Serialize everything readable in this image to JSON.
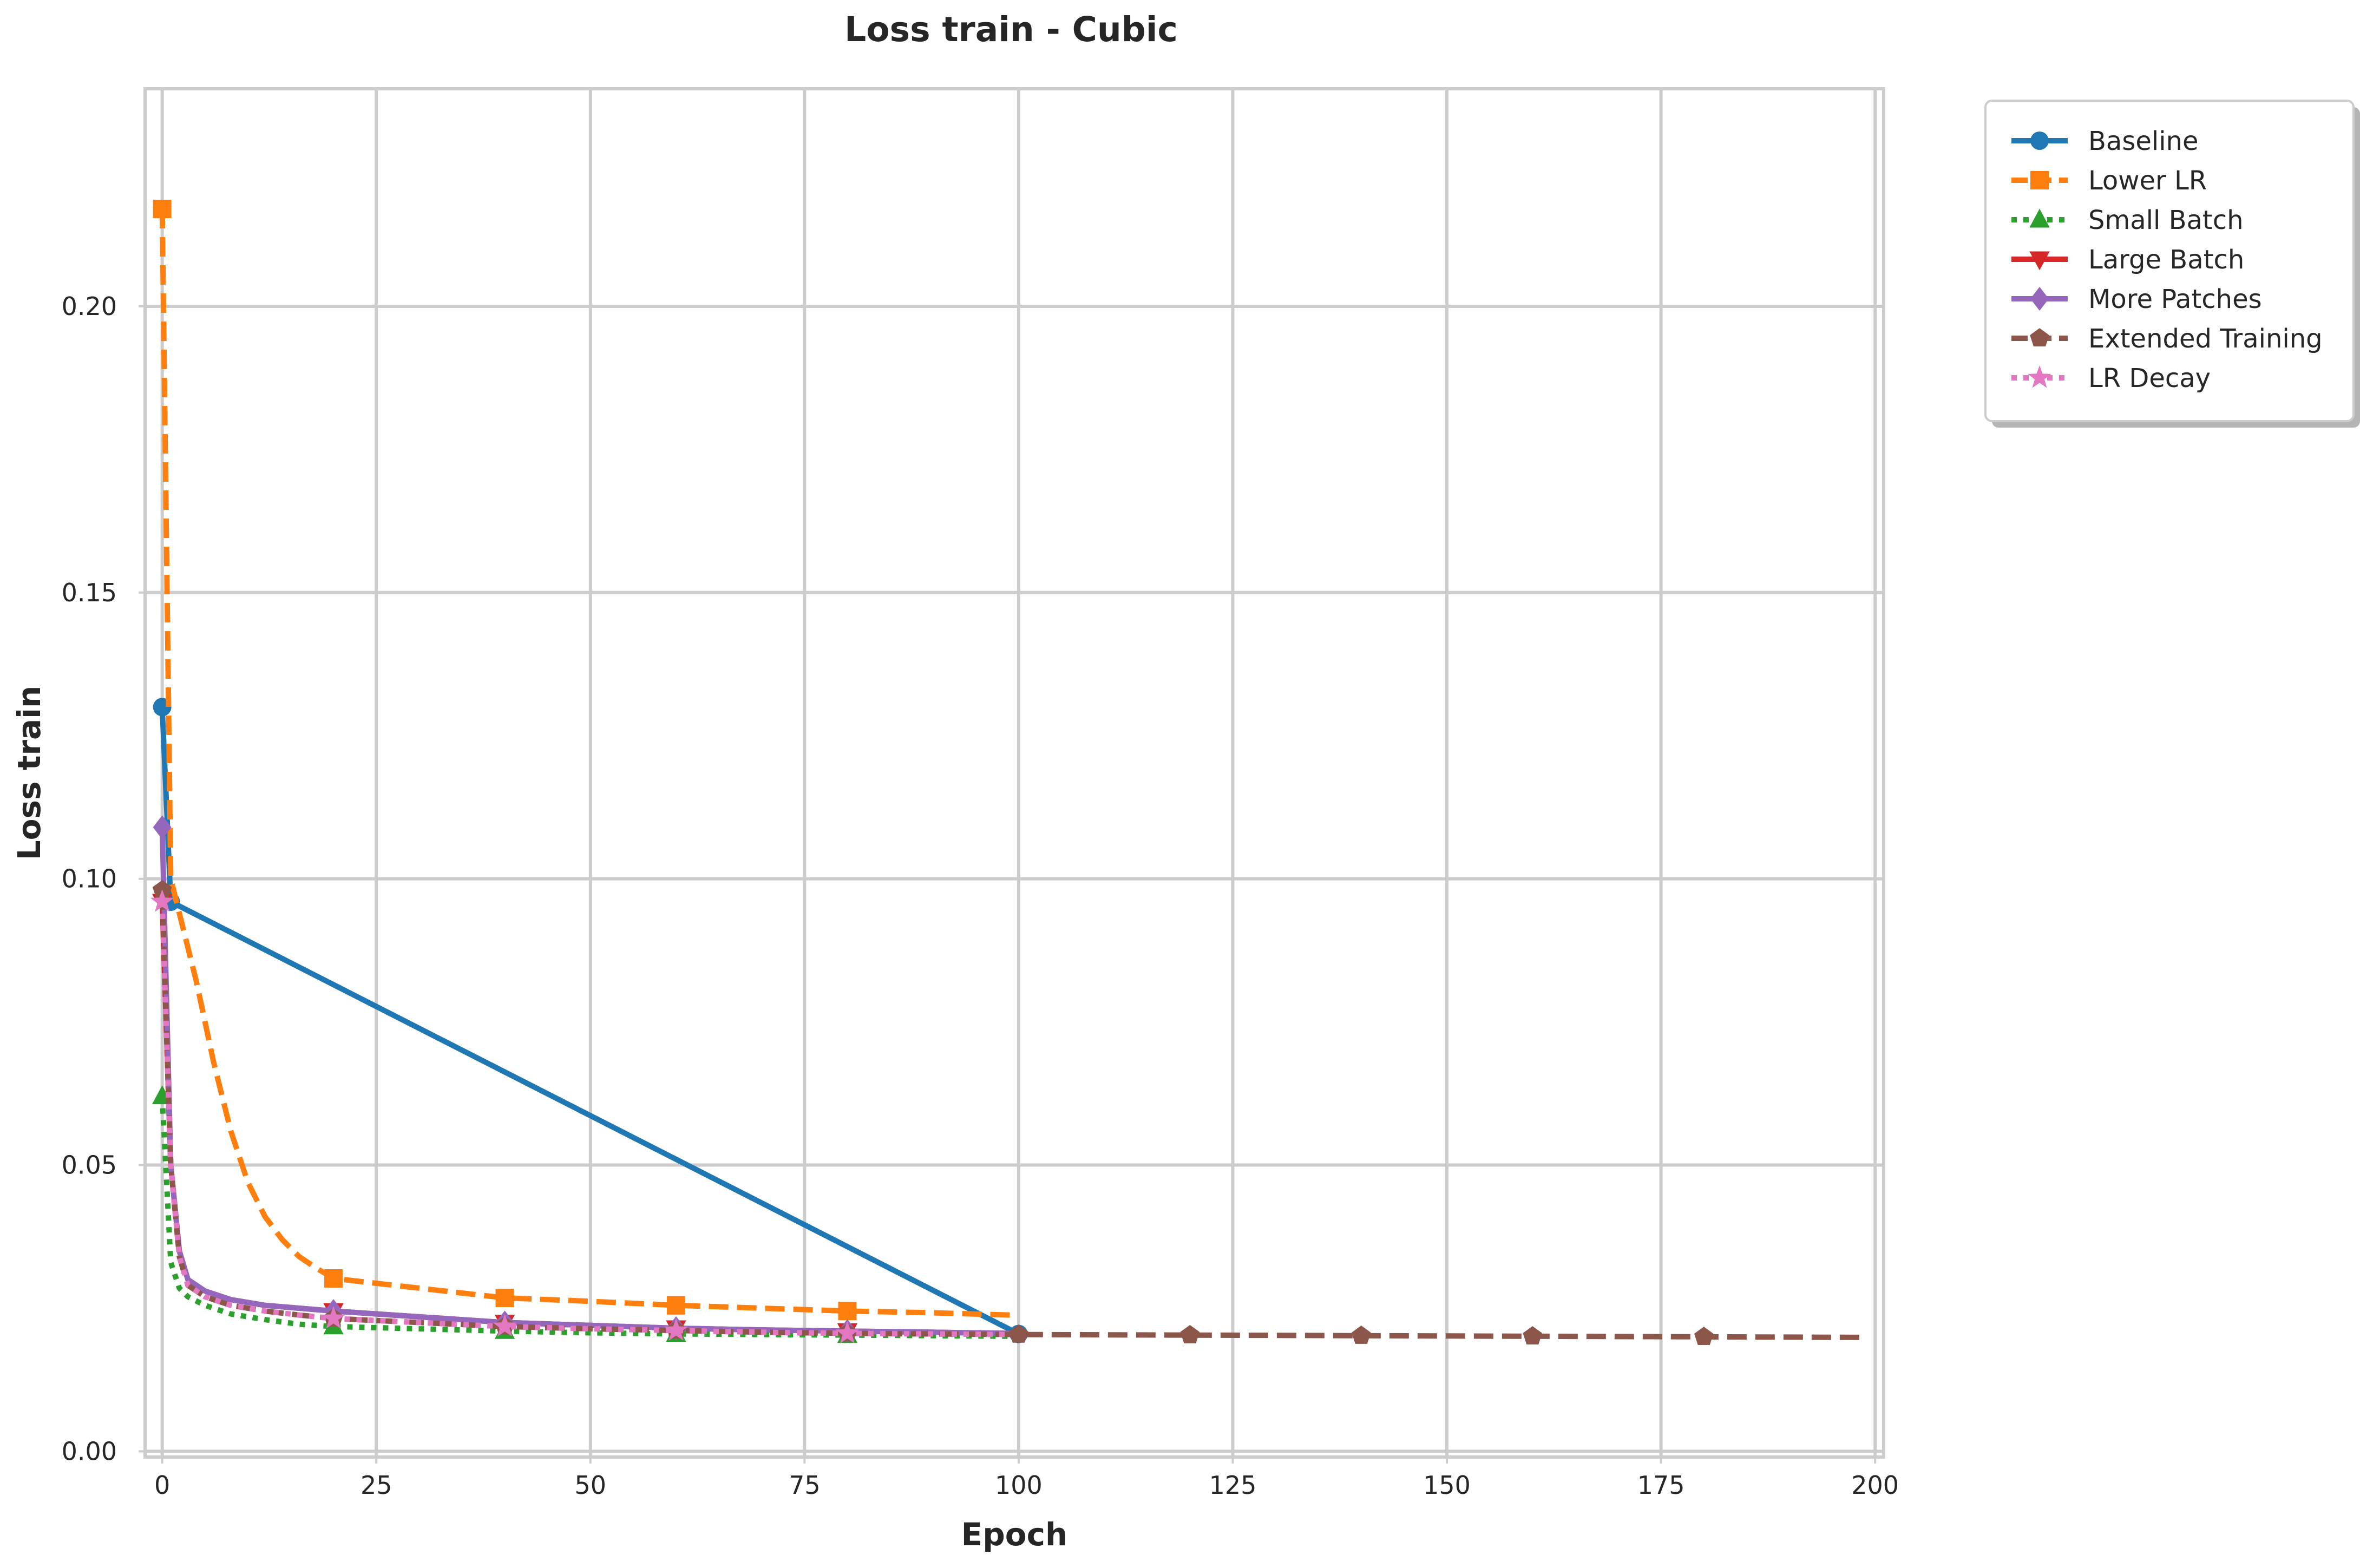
{
  "chart_data": {
    "type": "line",
    "title": "Loss train - Cubic",
    "xlabel": "Epoch",
    "ylabel": "Loss train",
    "xlim": [
      -2,
      201
    ],
    "ylim": [
      -0.001,
      0.238
    ],
    "x_ticks": [
      0,
      25,
      50,
      75,
      100,
      125,
      150,
      175,
      200
    ],
    "y_ticks": [
      0.0,
      0.05,
      0.1,
      0.15,
      0.2
    ],
    "x_tick_labels": [
      "0",
      "25",
      "50",
      "75",
      "100",
      "125",
      "150",
      "175",
      "200"
    ],
    "y_tick_labels": [
      "0.00",
      "0.05",
      "0.10",
      "0.15",
      "0.20"
    ],
    "grid": true,
    "legend_position": "outside-top-right",
    "series": [
      {
        "name": "Baseline",
        "color": "#1f77b4",
        "dash": "solid",
        "marker": "circle",
        "x": [
          0,
          1,
          100
        ],
        "y": [
          0.13,
          0.096,
          0.0205
        ]
      },
      {
        "name": "Lower LR",
        "color": "#ff7f0e",
        "dash": "dashed",
        "marker": "square",
        "x": [
          0,
          1,
          2,
          4,
          6,
          8,
          10,
          12,
          14,
          16,
          18,
          20,
          30,
          40,
          50,
          60,
          70,
          80,
          90,
          99
        ],
        "y": [
          0.217,
          0.1,
          0.094,
          0.082,
          0.068,
          0.056,
          0.047,
          0.041,
          0.037,
          0.034,
          0.032,
          0.0302,
          0.0285,
          0.0268,
          0.0262,
          0.0255,
          0.025,
          0.0245,
          0.0242,
          0.0238
        ],
        "marker_x": [
          0,
          20,
          40,
          60,
          80
        ]
      },
      {
        "name": "Small Batch",
        "color": "#2ca02c",
        "dash": "dotted",
        "marker": "triangle",
        "x": [
          0,
          1,
          2,
          3,
          5,
          8,
          12,
          16,
          20,
          30,
          40,
          50,
          60,
          70,
          80,
          90,
          99
        ],
        "y": [
          0.062,
          0.033,
          0.0285,
          0.027,
          0.0255,
          0.024,
          0.023,
          0.0222,
          0.0218,
          0.0214,
          0.021,
          0.0207,
          0.0205,
          0.0204,
          0.0203,
          0.0202,
          0.0201
        ],
        "marker_x": [
          0,
          20,
          40,
          60,
          80
        ]
      },
      {
        "name": "Large Batch",
        "color": "#d62728",
        "dash": "solid",
        "marker": "triangle-down",
        "x": [
          0,
          1,
          2,
          3,
          5,
          8,
          12,
          16,
          20,
          30,
          40,
          50,
          60,
          70,
          80,
          90,
          99
        ],
        "y": [
          0.096,
          0.05,
          0.035,
          0.03,
          0.028,
          0.0265,
          0.0255,
          0.025,
          0.0245,
          0.0235,
          0.0225,
          0.022,
          0.0215,
          0.0212,
          0.021,
          0.0208,
          0.0206
        ],
        "marker_x": [
          0,
          20,
          40,
          60,
          80
        ]
      },
      {
        "name": "More Patches",
        "color": "#9467bd",
        "dash": "solid",
        "marker": "diamond",
        "x": [
          0,
          1,
          2,
          3,
          5,
          8,
          12,
          16,
          20,
          30,
          40,
          50,
          60,
          70,
          80,
          90,
          99
        ],
        "y": [
          0.109,
          0.05,
          0.035,
          0.03,
          0.028,
          0.0265,
          0.0255,
          0.025,
          0.0245,
          0.0235,
          0.0225,
          0.022,
          0.0215,
          0.0212,
          0.021,
          0.0208,
          0.0206
        ],
        "marker_x": [
          0,
          20,
          40,
          60,
          80
        ]
      },
      {
        "name": "Extended Training",
        "color": "#8c564b",
        "dash": "dashed",
        "marker": "pentagon",
        "x": [
          0,
          1,
          2,
          3,
          5,
          8,
          12,
          16,
          20,
          30,
          40,
          50,
          60,
          70,
          80,
          90,
          100,
          120,
          140,
          160,
          180,
          199
        ],
        "y": [
          0.098,
          0.05,
          0.034,
          0.029,
          0.027,
          0.0255,
          0.0245,
          0.0238,
          0.0232,
          0.0225,
          0.0218,
          0.0214,
          0.0211,
          0.0208,
          0.0206,
          0.0205,
          0.0204,
          0.0203,
          0.0202,
          0.0201,
          0.02,
          0.0199
        ],
        "marker_x": [
          0,
          20,
          40,
          60,
          80,
          100,
          120,
          140,
          160,
          180
        ]
      },
      {
        "name": "LR Decay",
        "color": "#e377c2",
        "dash": "dotted",
        "marker": "star",
        "x": [
          0,
          1,
          2,
          3,
          5,
          8,
          12,
          16,
          20,
          30,
          40,
          50,
          60,
          70,
          80,
          90,
          99
        ],
        "y": [
          0.096,
          0.05,
          0.034,
          0.029,
          0.027,
          0.0255,
          0.0245,
          0.0238,
          0.0232,
          0.0225,
          0.0218,
          0.0214,
          0.0211,
          0.0208,
          0.0206,
          0.0205,
          0.0204
        ],
        "marker_x": [
          0,
          20,
          40,
          60,
          80
        ]
      }
    ]
  }
}
